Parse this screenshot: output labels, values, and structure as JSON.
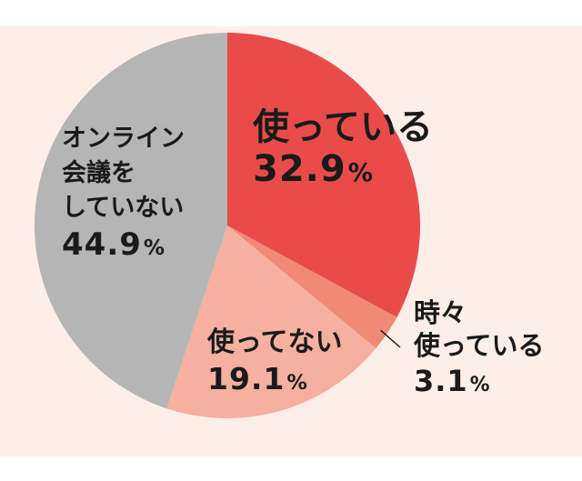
{
  "chart_data": {
    "type": "pie",
    "title": "",
    "slices": [
      {
        "label": "使ってい\nる",
        "name_lines": [
          "使っている"
        ],
        "value": 32.9,
        "display": "32.9",
        "unit": "%",
        "color": "#e94b4b"
      },
      {
        "label": "時々使っている",
        "name_lines": [
          "時々",
          "使っている"
        ],
        "value": 3.1,
        "display": "3.1",
        "unit": "%",
        "color": "#f08a76"
      },
      {
        "label": "使ってない",
        "name_lines": [
          "使ってない"
        ],
        "value": 19.1,
        "display": "19.1",
        "unit": "%",
        "color": "#f5b0a0"
      },
      {
        "label": "オンライン会議をしていない",
        "name_lines": [
          "オンライン",
          "会議を",
          "していない"
        ],
        "value": 44.9,
        "display": "44.9",
        "unit": "%",
        "color": "#b5b5b5"
      }
    ]
  }
}
